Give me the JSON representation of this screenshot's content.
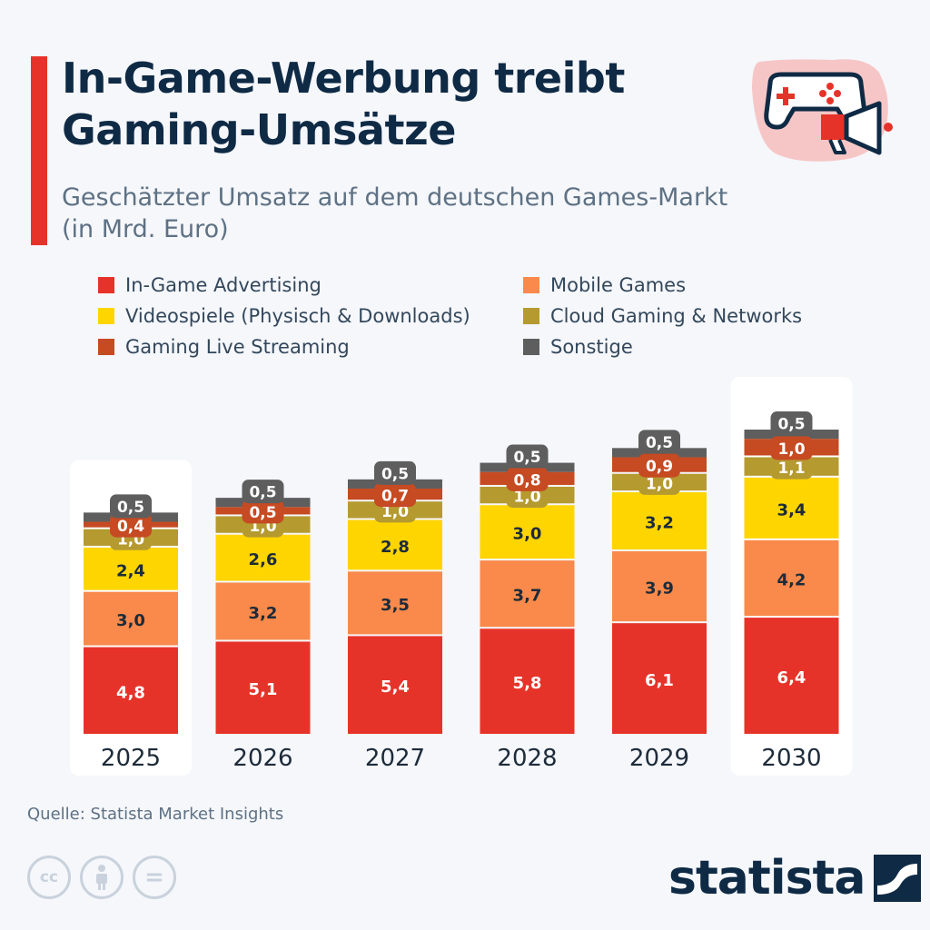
{
  "header": {
    "title_line1": "In-Game-Werbung treibt",
    "title_line2": "Gaming-Umsätze",
    "subtitle_line1": "Geschätzter Umsatz auf dem deutschen Games-Markt",
    "subtitle_line2": "(in Mrd. Euro)",
    "icon": "gamepad-megaphone-icon"
  },
  "colors": {
    "accent": "#e63329",
    "in_game_advertising": "#e63329",
    "mobile_games": "#f98a4b",
    "videospiele": "#ffd500",
    "cloud_gaming": "#b59a30",
    "live_streaming": "#c64a22",
    "sonstige": "#5e5e5e",
    "highlight_panel": "#ffffff",
    "text_dark": "#0f2a45"
  },
  "chart_data": {
    "type": "bar",
    "stacked": true,
    "categories": [
      "2025",
      "2026",
      "2027",
      "2028",
      "2029",
      "2030"
    ],
    "highlighted_categories": [
      "2025",
      "2030"
    ],
    "series": [
      {
        "name": "In-Game Advertising",
        "color": "#e63329",
        "values": [
          4.8,
          5.1,
          5.4,
          5.8,
          6.1,
          6.4
        ],
        "labels": [
          "4,8",
          "5,1",
          "5,4",
          "5,8",
          "6,1",
          "6,4"
        ]
      },
      {
        "name": "Mobile Games",
        "color": "#f98a4b",
        "values": [
          3.0,
          3.2,
          3.5,
          3.7,
          3.9,
          4.2
        ],
        "labels": [
          "3,0",
          "3,2",
          "3,5",
          "3,7",
          "3,9",
          "4,2"
        ]
      },
      {
        "name": "Videospiele (Physisch & Downloads)",
        "color": "#ffd500",
        "values": [
          2.4,
          2.6,
          2.8,
          3.0,
          3.2,
          3.4
        ],
        "labels": [
          "2,4",
          "2,6",
          "2,8",
          "3,0",
          "3,2",
          "3,4"
        ]
      },
      {
        "name": "Cloud Gaming & Networks",
        "color": "#b59a30",
        "values": [
          1.0,
          1.0,
          1.0,
          1.0,
          1.0,
          1.1
        ],
        "labels": [
          "1,0",
          "1,0",
          "1,0",
          "1,0",
          "1,0",
          "1,1"
        ]
      },
      {
        "name": "Gaming Live Streaming",
        "color": "#c64a22",
        "values": [
          0.4,
          0.5,
          0.7,
          0.8,
          0.9,
          1.0
        ],
        "labels": [
          "0,4",
          "0,5",
          "0,7",
          "0,8",
          "0,9",
          "1,0"
        ]
      },
      {
        "name": "Sonstige",
        "color": "#5e5e5e",
        "values": [
          0.5,
          0.5,
          0.5,
          0.5,
          0.5,
          0.5
        ],
        "labels": [
          "0,5",
          "0,5",
          "0,5",
          "0,5",
          "0,5",
          "0,5"
        ]
      }
    ],
    "legend_order": [
      "In-Game Advertising",
      "Mobile Games",
      "Videospiele (Physisch & Downloads)",
      "Cloud Gaming & Networks",
      "Gaming Live Streaming",
      "Sonstige"
    ],
    "legend_placement": "top",
    "grid": false,
    "xlabel": "",
    "ylabel": ""
  },
  "footer": {
    "source": "Quelle: Statista Market Insights",
    "license_icons": [
      {
        "name": "cc-icon",
        "glyph": "cc"
      },
      {
        "name": "attribution-icon",
        "glyph": "i"
      },
      {
        "name": "no-derivatives-icon",
        "glyph": "="
      }
    ],
    "brand": "statista",
    "brand_icon": "statista-logo-icon"
  }
}
